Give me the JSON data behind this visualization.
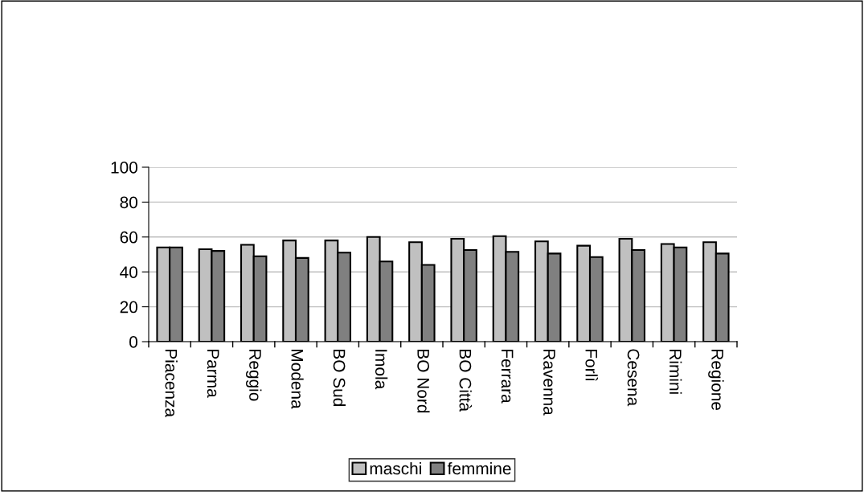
{
  "chart_data": {
    "type": "bar",
    "categories": [
      "Piacenza",
      "Parma",
      "Reggio",
      "Modena",
      "BO Sud",
      "Imola",
      "BO Nord",
      "BO Città",
      "Ferrara",
      "Ravenna",
      "Forlì",
      "Cesena",
      "Rimini",
      "Regione"
    ],
    "series": [
      {
        "name": "maschi",
        "color": "#c0c0c0",
        "values": [
          54,
          53,
          55.5,
          58,
          58,
          60,
          57,
          59,
          60.5,
          57.5,
          55,
          59,
          56,
          57
        ]
      },
      {
        "name": "femmine",
        "color": "#808080",
        "values": [
          54,
          52,
          49,
          48,
          51,
          46,
          44,
          52.5,
          51.5,
          50.5,
          48.5,
          52.5,
          54,
          50.5
        ]
      }
    ],
    "ylim": [
      0,
      100
    ],
    "yticks": [
      0,
      20,
      40,
      60,
      80,
      100
    ],
    "grid": "y",
    "legend": "bottom"
  }
}
